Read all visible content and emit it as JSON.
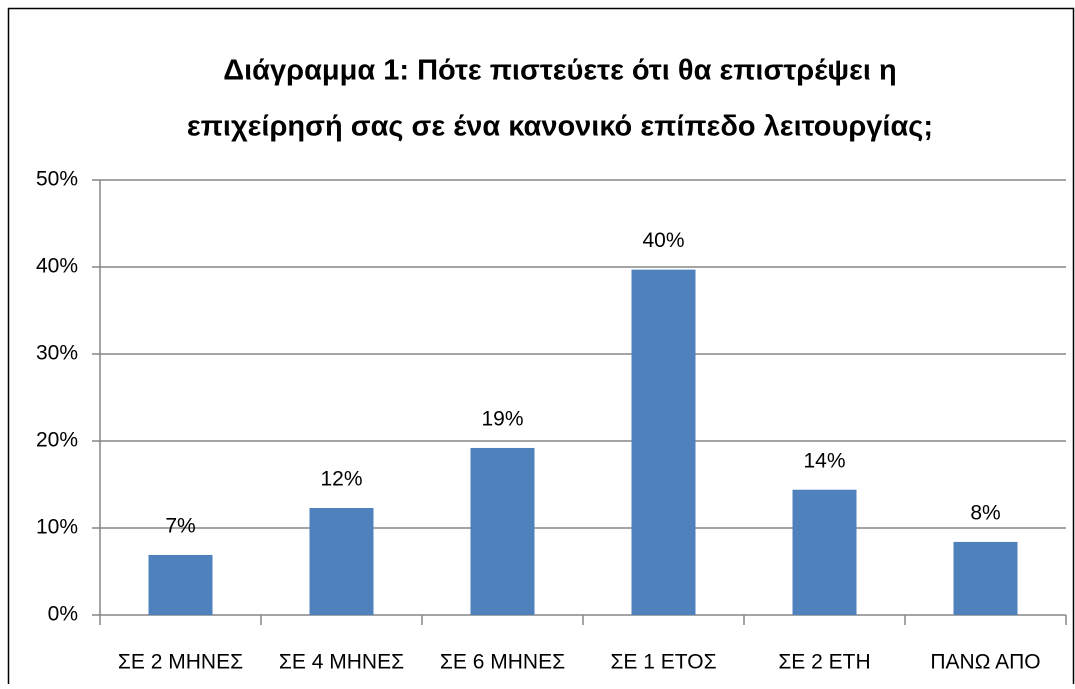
{
  "chart_data": {
    "type": "bar",
    "title": [
      "Διάγραμμα 1: Πότε πιστεύετε ότι θα επιστρέψει η",
      "επιχείρησή σας σε ένα κανονικό επίπεδο λειτουργίας;"
    ],
    "categories": [
      "ΣΕ 2 ΜΗΝΕΣ",
      "ΣΕ 4 ΜΗΝΕΣ",
      "ΣΕ 6 ΜΗΝΕΣ",
      "ΣΕ 1 ΕΤΟΣ",
      "ΣΕ 2 ΕΤΗ",
      "ΠΑΝΩ ΑΠΟ"
    ],
    "values": [
      6.9,
      12.3,
      19.2,
      39.7,
      14.4,
      8.4
    ],
    "value_labels": [
      "7%",
      "12%",
      "19%",
      "40%",
      "14%",
      "8%"
    ],
    "color": "#4f81bd",
    "ylim": [
      0,
      50
    ],
    "yticks": [
      {
        "value": 0,
        "label": "0%"
      },
      {
        "value": 10,
        "label": "10%"
      },
      {
        "value": 20,
        "label": "20%"
      },
      {
        "value": 30,
        "label": "30%"
      },
      {
        "value": 40,
        "label": "40%"
      },
      {
        "value": 50,
        "label": "50%"
      }
    ],
    "grid": true
  }
}
